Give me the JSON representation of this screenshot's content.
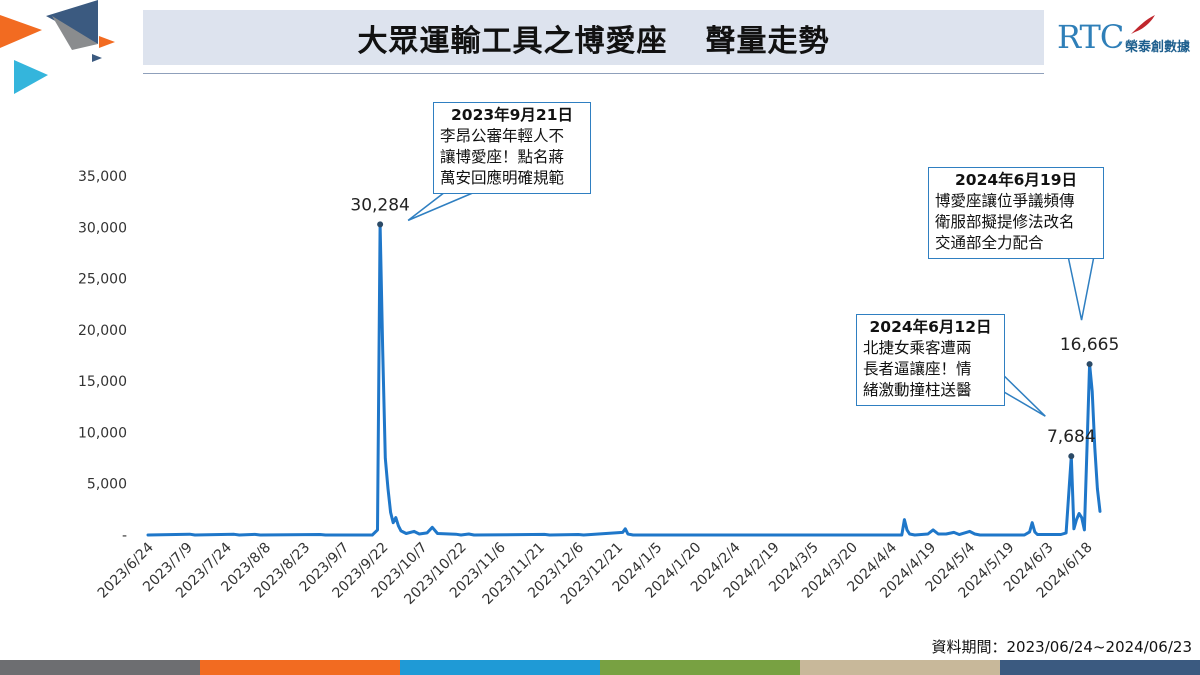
{
  "header": {
    "title_main": "大眾運輸工具之博愛座",
    "title_sub": "聲量走勢",
    "brand_logo": "RTC",
    "brand_name": "榮泰創數據"
  },
  "colors": {
    "line": "#1f77c9",
    "title_bg": "#dde3ee",
    "footer": [
      "#6d6e71",
      "#f26b21",
      "#1f9ad6",
      "#78a142",
      "#c8b89a",
      "#3b5a80"
    ]
  },
  "chart_data": {
    "type": "line",
    "title": "",
    "xlabel": "",
    "ylabel": "",
    "ylim": [
      0,
      35000
    ],
    "y_ticks": [
      0,
      5000,
      10000,
      15000,
      20000,
      25000,
      30000,
      35000
    ],
    "y_tick_labels": [
      "-",
      "5,000",
      "10,000",
      "15,000",
      "20,000",
      "25,000",
      "30,000",
      "35,000"
    ],
    "x_tick_labels": [
      "2023/6/24",
      "2023/7/9",
      "2023/7/24",
      "2023/8/8",
      "2023/8/23",
      "2023/9/7",
      "2023/9/22",
      "2023/10/7",
      "2023/10/22",
      "2023/11/6",
      "2023/11/21",
      "2023/12/6",
      "2023/12/21",
      "2024/1/5",
      "2024/1/20",
      "2024/2/4",
      "2024/2/19",
      "2024/3/5",
      "2024/3/20",
      "2024/4/4",
      "2024/4/19",
      "2024/5/4",
      "2024/5/19",
      "2024/6/3",
      "2024/6/18"
    ],
    "grid": false,
    "legend": "none",
    "series": [
      {
        "points": [
          [
            "2023/6/24",
            0
          ],
          [
            "2023/7/10",
            80
          ],
          [
            "2023/7/12",
            0
          ],
          [
            "2023/7/27",
            70
          ],
          [
            "2023/7/29",
            0
          ],
          [
            "2023/8/4",
            60
          ],
          [
            "2023/8/6",
            0
          ],
          [
            "2023/8/29",
            50
          ],
          [
            "2023/8/31",
            0
          ],
          [
            "2023/9/18",
            0
          ],
          [
            "2023/9/20",
            500
          ],
          [
            "2023/9/21",
            30284
          ],
          [
            "2023/9/22",
            18000
          ],
          [
            "2023/9/23",
            7500
          ],
          [
            "2023/9/24",
            4500
          ],
          [
            "2023/9/25",
            2200
          ],
          [
            "2023/9/26",
            1200
          ],
          [
            "2023/9/27",
            1700
          ],
          [
            "2023/9/28",
            900
          ],
          [
            "2023/9/29",
            400
          ],
          [
            "2023/10/1",
            150
          ],
          [
            "2023/10/4",
            350
          ],
          [
            "2023/10/6",
            100
          ],
          [
            "2023/10/9",
            200
          ],
          [
            "2023/10/11",
            750
          ],
          [
            "2023/10/13",
            150
          ],
          [
            "2023/10/20",
            80
          ],
          [
            "2023/10/22",
            0
          ],
          [
            "2023/10/25",
            100
          ],
          [
            "2023/10/27",
            0
          ],
          [
            "2023/11/23",
            60
          ],
          [
            "2023/11/25",
            0
          ],
          [
            "2023/12/6",
            50
          ],
          [
            "2023/12/8",
            0
          ],
          [
            "2023/12/23",
            250
          ],
          [
            "2023/12/24",
            600
          ],
          [
            "2023/12/25",
            100
          ],
          [
            "2023/12/27",
            0
          ],
          [
            "2024/4/8",
            0
          ],
          [
            "2024/4/9",
            1500
          ],
          [
            "2024/4/10",
            500
          ],
          [
            "2024/4/11",
            100
          ],
          [
            "2024/4/13",
            0
          ],
          [
            "2024/4/18",
            100
          ],
          [
            "2024/4/20",
            500
          ],
          [
            "2024/4/22",
            100
          ],
          [
            "2024/4/25",
            100
          ],
          [
            "2024/4/28",
            250
          ],
          [
            "2024/4/30",
            50
          ],
          [
            "2024/5/4",
            350
          ],
          [
            "2024/5/6",
            100
          ],
          [
            "2024/5/8",
            0
          ],
          [
            "2024/5/25",
            0
          ],
          [
            "2024/5/27",
            300
          ],
          [
            "2024/5/28",
            1200
          ],
          [
            "2024/5/29",
            300
          ],
          [
            "2024/5/30",
            50
          ],
          [
            "2024/6/8",
            50
          ],
          [
            "2024/6/10",
            200
          ],
          [
            "2024/6/12",
            7684
          ],
          [
            "2024/6/13",
            600
          ],
          [
            "2024/6/14",
            1500
          ],
          [
            "2024/6/15",
            2100
          ],
          [
            "2024/6/16",
            1700
          ],
          [
            "2024/6/17",
            500
          ],
          [
            "2024/6/18",
            8500
          ],
          [
            "2024/6/19",
            16665
          ],
          [
            "2024/6/20",
            14000
          ],
          [
            "2024/6/21",
            8500
          ],
          [
            "2024/6/22",
            4500
          ],
          [
            "2024/6/23",
            2300
          ]
        ]
      }
    ],
    "data_labels": [
      {
        "date": "2023/9/21",
        "value": 30284,
        "label": "30,284"
      },
      {
        "date": "2024/6/12",
        "value": 7684,
        "label": "7,684"
      },
      {
        "date": "2024/6/19",
        "value": 16665,
        "label": "16,665"
      }
    ],
    "annotations": [
      {
        "date_label": "2023年9月21日",
        "lines": [
          "李昂公審年輕人不",
          "讓博愛座！點名蔣",
          "萬安回應明確規範"
        ]
      },
      {
        "date_label": "2024年6月12日",
        "lines": [
          "北捷女乘客遭兩",
          "長者逼讓座！情",
          "緒激動撞柱送醫"
        ]
      },
      {
        "date_label": "2024年6月19日",
        "lines": [
          "博愛座讓位爭議頻傳",
          "衛服部擬提修法改名",
          "交通部全力配合"
        ]
      }
    ],
    "data_period": "資料期間：2023/06/24~2024/06/23"
  }
}
